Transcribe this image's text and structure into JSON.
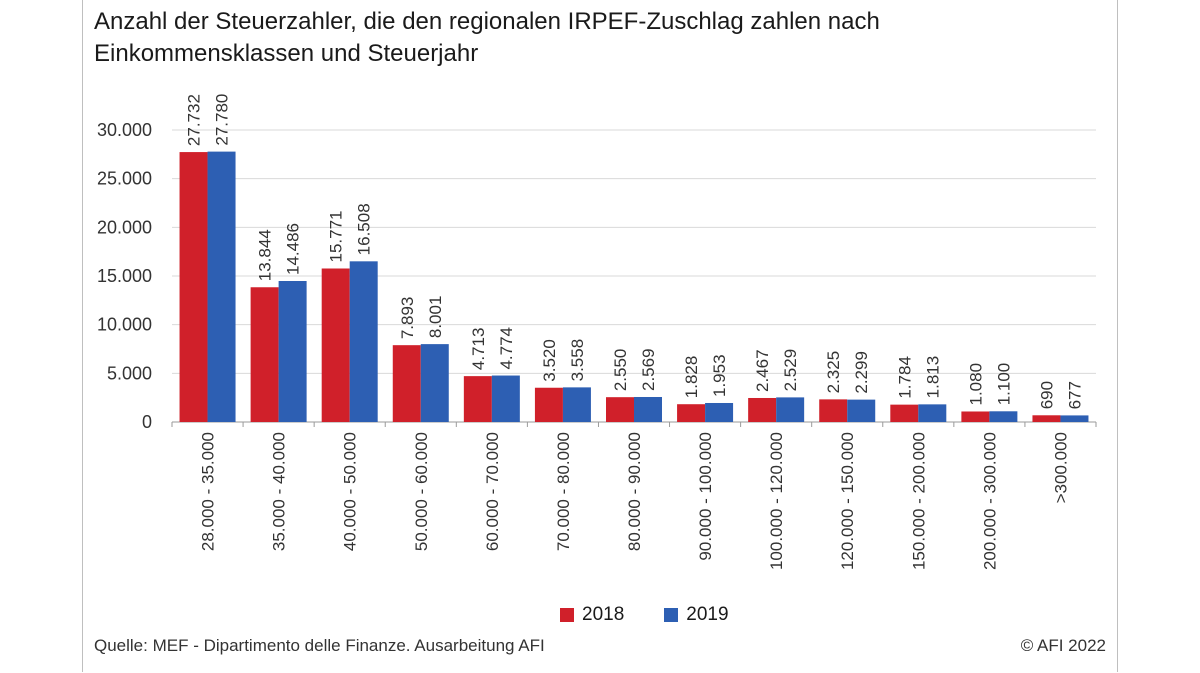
{
  "colors": {
    "series_2018": "#d0202a",
    "series_2019": "#2d5fb3",
    "grid": "#d9d9d9",
    "axis": "#9a9a9a"
  },
  "footer": {
    "source": "Quelle: MEF - Dipartimento delle Finanze. Ausarbeitung AFI",
    "copyright": "© AFI 2022"
  },
  "chart_data": {
    "type": "bar",
    "title": "Anzahl der Steuerzahler, die den regionalen IRPEF-Zuschlag zahlen nach Einkommensklassen und Steuerjahr",
    "xlabel": "",
    "ylabel": "",
    "ylim": [
      0,
      30000
    ],
    "yticks": [
      0,
      5000,
      10000,
      15000,
      20000,
      25000,
      30000
    ],
    "ytick_labels": [
      "0",
      "5.000",
      "10.000",
      "15.000",
      "20.000",
      "25.000",
      "30.000"
    ],
    "grid": true,
    "legend_position": "bottom",
    "categories": [
      "28.000 - 35.000",
      "35.000 - 40.000",
      "40.000 - 50.000",
      "50.000 - 60.000",
      "60.000 - 70.000",
      "70.000 - 80.000",
      "80.000 - 90.000",
      "90.000 - 100.000",
      "100.000 - 120.000",
      "120.000 - 150.000",
      "150.000 - 200.000",
      "200.000 - 300.000",
      ">300.000"
    ],
    "series": [
      {
        "name": "2018",
        "values": [
          27732,
          13844,
          15771,
          7893,
          4713,
          3520,
          2550,
          1828,
          2467,
          2325,
          1784,
          1080,
          690
        ],
        "labels": [
          "27.732",
          "13.844",
          "15.771",
          "7.893",
          "4.713",
          "3.520",
          "2.550",
          "1.828",
          "2.467",
          "2.325",
          "1.784",
          "1.080",
          "690"
        ]
      },
      {
        "name": "2019",
        "values": [
          27780,
          14486,
          16508,
          8001,
          4774,
          3558,
          2569,
          1953,
          2529,
          2299,
          1813,
          1100,
          677
        ],
        "labels": [
          "27.780",
          "14.486",
          "16.508",
          "8.001",
          "4.774",
          "3.558",
          "2.569",
          "1.953",
          "2.529",
          "2.299",
          "1.813",
          "1.100",
          "677"
        ]
      }
    ]
  }
}
